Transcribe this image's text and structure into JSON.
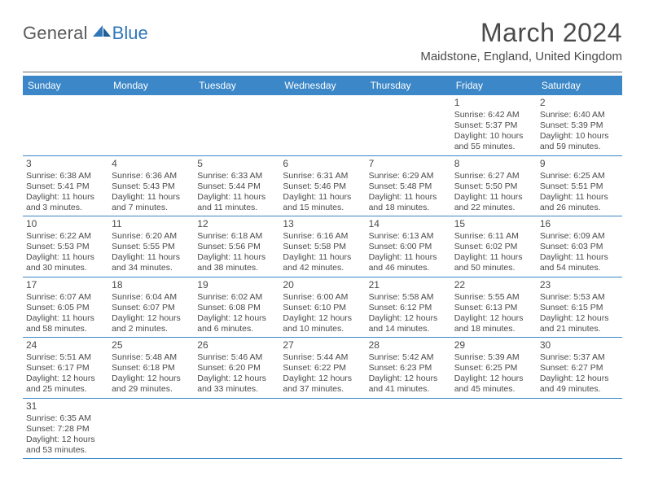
{
  "brand": {
    "text1": "General",
    "text2": "Blue"
  },
  "title": "March 2024",
  "location": "Maidstone, England, United Kingdom",
  "colors": {
    "header_bg": "#3b87c8",
    "header_text": "#ffffff",
    "rule": "#6a6a6a",
    "text": "#4a4a4a",
    "brand_blue": "#2f77b9",
    "row_border": "#3b87c8",
    "background": "#ffffff"
  },
  "typography": {
    "title_fontsize": 32,
    "location_fontsize": 15,
    "dayhead_fontsize": 12,
    "cell_fontsize": 10.5,
    "daynum_fontsize": 12
  },
  "day_headers": [
    "Sunday",
    "Monday",
    "Tuesday",
    "Wednesday",
    "Thursday",
    "Friday",
    "Saturday"
  ],
  "weeks": [
    [
      null,
      null,
      null,
      null,
      null,
      {
        "n": "1",
        "sunrise": "Sunrise: 6:42 AM",
        "sunset": "Sunset: 5:37 PM",
        "daylight": "Daylight: 10 hours and 55 minutes."
      },
      {
        "n": "2",
        "sunrise": "Sunrise: 6:40 AM",
        "sunset": "Sunset: 5:39 PM",
        "daylight": "Daylight: 10 hours and 59 minutes."
      }
    ],
    [
      {
        "n": "3",
        "sunrise": "Sunrise: 6:38 AM",
        "sunset": "Sunset: 5:41 PM",
        "daylight": "Daylight: 11 hours and 3 minutes."
      },
      {
        "n": "4",
        "sunrise": "Sunrise: 6:36 AM",
        "sunset": "Sunset: 5:43 PM",
        "daylight": "Daylight: 11 hours and 7 minutes."
      },
      {
        "n": "5",
        "sunrise": "Sunrise: 6:33 AM",
        "sunset": "Sunset: 5:44 PM",
        "daylight": "Daylight: 11 hours and 11 minutes."
      },
      {
        "n": "6",
        "sunrise": "Sunrise: 6:31 AM",
        "sunset": "Sunset: 5:46 PM",
        "daylight": "Daylight: 11 hours and 15 minutes."
      },
      {
        "n": "7",
        "sunrise": "Sunrise: 6:29 AM",
        "sunset": "Sunset: 5:48 PM",
        "daylight": "Daylight: 11 hours and 18 minutes."
      },
      {
        "n": "8",
        "sunrise": "Sunrise: 6:27 AM",
        "sunset": "Sunset: 5:50 PM",
        "daylight": "Daylight: 11 hours and 22 minutes."
      },
      {
        "n": "9",
        "sunrise": "Sunrise: 6:25 AM",
        "sunset": "Sunset: 5:51 PM",
        "daylight": "Daylight: 11 hours and 26 minutes."
      }
    ],
    [
      {
        "n": "10",
        "sunrise": "Sunrise: 6:22 AM",
        "sunset": "Sunset: 5:53 PM",
        "daylight": "Daylight: 11 hours and 30 minutes."
      },
      {
        "n": "11",
        "sunrise": "Sunrise: 6:20 AM",
        "sunset": "Sunset: 5:55 PM",
        "daylight": "Daylight: 11 hours and 34 minutes."
      },
      {
        "n": "12",
        "sunrise": "Sunrise: 6:18 AM",
        "sunset": "Sunset: 5:56 PM",
        "daylight": "Daylight: 11 hours and 38 minutes."
      },
      {
        "n": "13",
        "sunrise": "Sunrise: 6:16 AM",
        "sunset": "Sunset: 5:58 PM",
        "daylight": "Daylight: 11 hours and 42 minutes."
      },
      {
        "n": "14",
        "sunrise": "Sunrise: 6:13 AM",
        "sunset": "Sunset: 6:00 PM",
        "daylight": "Daylight: 11 hours and 46 minutes."
      },
      {
        "n": "15",
        "sunrise": "Sunrise: 6:11 AM",
        "sunset": "Sunset: 6:02 PM",
        "daylight": "Daylight: 11 hours and 50 minutes."
      },
      {
        "n": "16",
        "sunrise": "Sunrise: 6:09 AM",
        "sunset": "Sunset: 6:03 PM",
        "daylight": "Daylight: 11 hours and 54 minutes."
      }
    ],
    [
      {
        "n": "17",
        "sunrise": "Sunrise: 6:07 AM",
        "sunset": "Sunset: 6:05 PM",
        "daylight": "Daylight: 11 hours and 58 minutes."
      },
      {
        "n": "18",
        "sunrise": "Sunrise: 6:04 AM",
        "sunset": "Sunset: 6:07 PM",
        "daylight": "Daylight: 12 hours and 2 minutes."
      },
      {
        "n": "19",
        "sunrise": "Sunrise: 6:02 AM",
        "sunset": "Sunset: 6:08 PM",
        "daylight": "Daylight: 12 hours and 6 minutes."
      },
      {
        "n": "20",
        "sunrise": "Sunrise: 6:00 AM",
        "sunset": "Sunset: 6:10 PM",
        "daylight": "Daylight: 12 hours and 10 minutes."
      },
      {
        "n": "21",
        "sunrise": "Sunrise: 5:58 AM",
        "sunset": "Sunset: 6:12 PM",
        "daylight": "Daylight: 12 hours and 14 minutes."
      },
      {
        "n": "22",
        "sunrise": "Sunrise: 5:55 AM",
        "sunset": "Sunset: 6:13 PM",
        "daylight": "Daylight: 12 hours and 18 minutes."
      },
      {
        "n": "23",
        "sunrise": "Sunrise: 5:53 AM",
        "sunset": "Sunset: 6:15 PM",
        "daylight": "Daylight: 12 hours and 21 minutes."
      }
    ],
    [
      {
        "n": "24",
        "sunrise": "Sunrise: 5:51 AM",
        "sunset": "Sunset: 6:17 PM",
        "daylight": "Daylight: 12 hours and 25 minutes."
      },
      {
        "n": "25",
        "sunrise": "Sunrise: 5:48 AM",
        "sunset": "Sunset: 6:18 PM",
        "daylight": "Daylight: 12 hours and 29 minutes."
      },
      {
        "n": "26",
        "sunrise": "Sunrise: 5:46 AM",
        "sunset": "Sunset: 6:20 PM",
        "daylight": "Daylight: 12 hours and 33 minutes."
      },
      {
        "n": "27",
        "sunrise": "Sunrise: 5:44 AM",
        "sunset": "Sunset: 6:22 PM",
        "daylight": "Daylight: 12 hours and 37 minutes."
      },
      {
        "n": "28",
        "sunrise": "Sunrise: 5:42 AM",
        "sunset": "Sunset: 6:23 PM",
        "daylight": "Daylight: 12 hours and 41 minutes."
      },
      {
        "n": "29",
        "sunrise": "Sunrise: 5:39 AM",
        "sunset": "Sunset: 6:25 PM",
        "daylight": "Daylight: 12 hours and 45 minutes."
      },
      {
        "n": "30",
        "sunrise": "Sunrise: 5:37 AM",
        "sunset": "Sunset: 6:27 PM",
        "daylight": "Daylight: 12 hours and 49 minutes."
      }
    ],
    [
      {
        "n": "31",
        "sunrise": "Sunrise: 6:35 AM",
        "sunset": "Sunset: 7:28 PM",
        "daylight": "Daylight: 12 hours and 53 minutes."
      },
      null,
      null,
      null,
      null,
      null,
      null
    ]
  ]
}
